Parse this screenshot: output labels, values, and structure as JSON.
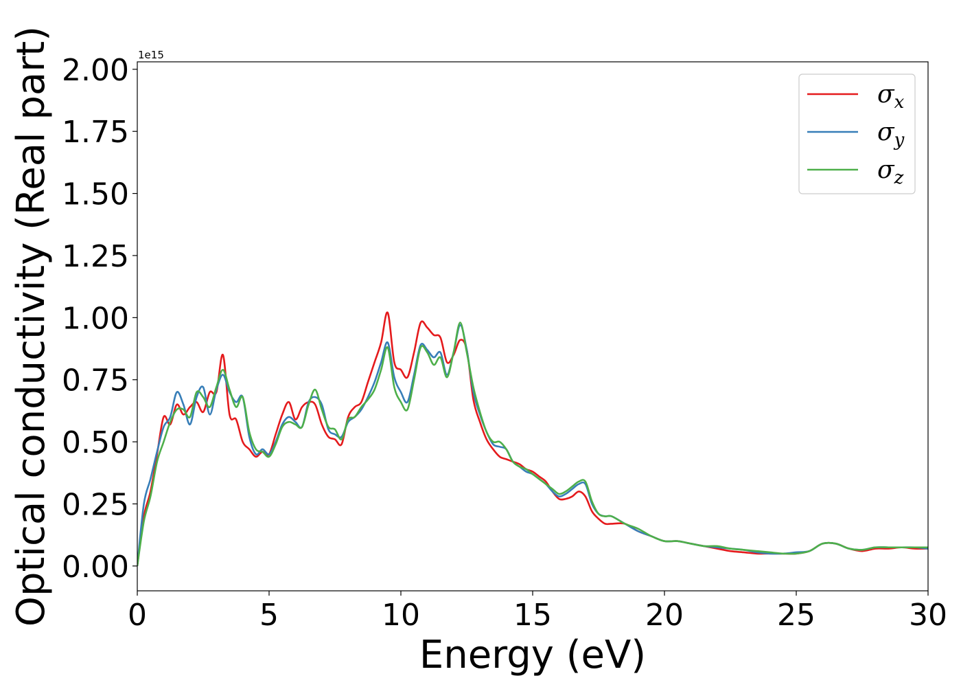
{
  "chart_data": {
    "type": "line",
    "xlabel": "Energy (eV)",
    "ylabel": "Optical conductivity (Real part)",
    "y_offset_label": "1e15",
    "xlim": [
      0,
      30
    ],
    "ylim": [
      -0.1,
      2.03
    ],
    "x_ticks": [
      0,
      5,
      10,
      15,
      20,
      25,
      30
    ],
    "y_ticks": [
      0.0,
      0.25,
      0.5,
      0.75,
      1.0,
      1.25,
      1.5,
      1.75,
      2.0
    ],
    "x_tick_labels": [
      "0",
      "5",
      "10",
      "15",
      "20",
      "25",
      "30"
    ],
    "y_tick_labels": [
      "0.00",
      "0.25",
      "0.50",
      "0.75",
      "1.00",
      "1.25",
      "1.50",
      "1.75",
      "2.00"
    ],
    "grid": false,
    "legend_position": "top-right",
    "x": [
      0,
      0.25,
      0.5,
      0.75,
      1.0,
      1.25,
      1.5,
      1.75,
      2.0,
      2.25,
      2.5,
      2.75,
      3.0,
      3.25,
      3.5,
      3.75,
      4.0,
      4.25,
      4.5,
      4.75,
      5.0,
      5.25,
      5.5,
      5.75,
      6.0,
      6.25,
      6.5,
      6.75,
      7.0,
      7.25,
      7.5,
      7.75,
      8.0,
      8.25,
      8.5,
      8.75,
      9.0,
      9.25,
      9.5,
      9.75,
      10.0,
      10.25,
      10.5,
      10.75,
      11.0,
      11.25,
      11.5,
      11.75,
      12.0,
      12.25,
      12.5,
      12.75,
      13.0,
      13.25,
      13.5,
      13.75,
      14.0,
      14.25,
      14.5,
      14.75,
      15.0,
      15.25,
      15.5,
      15.75,
      16.0,
      16.25,
      16.5,
      16.75,
      17.0,
      17.25,
      17.5,
      17.75,
      18.0,
      18.5,
      19.0,
      19.5,
      20.0,
      20.5,
      21.0,
      21.5,
      22.0,
      22.5,
      23.0,
      23.5,
      24.0,
      24.5,
      25.0,
      25.5,
      26.0,
      26.5,
      27.0,
      27.5,
      28.0,
      28.5,
      29.0,
      29.5,
      30.0
    ],
    "series": [
      {
        "name": "σ",
        "subscript": "x",
        "color": "#e41a1c",
        "values": [
          0.0,
          0.2,
          0.3,
          0.45,
          0.6,
          0.57,
          0.65,
          0.61,
          0.64,
          0.66,
          0.62,
          0.7,
          0.7,
          0.85,
          0.61,
          0.59,
          0.5,
          0.47,
          0.44,
          0.46,
          0.45,
          0.53,
          0.61,
          0.66,
          0.59,
          0.64,
          0.66,
          0.65,
          0.57,
          0.52,
          0.51,
          0.49,
          0.6,
          0.64,
          0.66,
          0.74,
          0.82,
          0.9,
          1.02,
          0.82,
          0.79,
          0.76,
          0.86,
          0.98,
          0.96,
          0.93,
          0.92,
          0.82,
          0.85,
          0.91,
          0.87,
          0.67,
          0.58,
          0.51,
          0.47,
          0.44,
          0.43,
          0.42,
          0.41,
          0.39,
          0.38,
          0.36,
          0.34,
          0.3,
          0.27,
          0.27,
          0.28,
          0.3,
          0.28,
          0.22,
          0.19,
          0.17,
          0.17,
          0.17,
          0.14,
          0.12,
          0.1,
          0.1,
          0.09,
          0.08,
          0.07,
          0.06,
          0.055,
          0.05,
          0.05,
          0.05,
          0.05,
          0.06,
          0.09,
          0.09,
          0.07,
          0.06,
          0.07,
          0.07,
          0.075,
          0.07,
          0.07
        ]
      },
      {
        "name": "σ",
        "subscript": "y",
        "color": "#377eb8",
        "values": [
          0.0,
          0.25,
          0.35,
          0.46,
          0.56,
          0.6,
          0.7,
          0.65,
          0.57,
          0.68,
          0.72,
          0.61,
          0.71,
          0.77,
          0.7,
          0.66,
          0.68,
          0.52,
          0.45,
          0.47,
          0.45,
          0.5,
          0.57,
          0.6,
          0.58,
          0.56,
          0.66,
          0.68,
          0.65,
          0.55,
          0.53,
          0.52,
          0.58,
          0.6,
          0.63,
          0.68,
          0.74,
          0.82,
          0.9,
          0.76,
          0.7,
          0.66,
          0.77,
          0.89,
          0.87,
          0.84,
          0.86,
          0.77,
          0.86,
          0.97,
          0.87,
          0.7,
          0.61,
          0.54,
          0.49,
          0.48,
          0.47,
          0.42,
          0.4,
          0.38,
          0.37,
          0.35,
          0.33,
          0.3,
          0.28,
          0.29,
          0.31,
          0.33,
          0.33,
          0.25,
          0.21,
          0.2,
          0.2,
          0.17,
          0.14,
          0.12,
          0.1,
          0.1,
          0.09,
          0.08,
          0.075,
          0.07,
          0.065,
          0.055,
          0.05,
          0.05,
          0.055,
          0.06,
          0.09,
          0.09,
          0.07,
          0.065,
          0.075,
          0.075,
          0.075,
          0.075,
          0.07
        ]
      },
      {
        "name": "σ",
        "subscript": "z",
        "color": "#4daf4a",
        "values": [
          0.0,
          0.18,
          0.28,
          0.42,
          0.5,
          0.58,
          0.63,
          0.63,
          0.6,
          0.7,
          0.68,
          0.64,
          0.72,
          0.79,
          0.71,
          0.64,
          0.68,
          0.54,
          0.47,
          0.46,
          0.44,
          0.49,
          0.56,
          0.58,
          0.57,
          0.56,
          0.65,
          0.71,
          0.63,
          0.56,
          0.55,
          0.51,
          0.59,
          0.6,
          0.64,
          0.67,
          0.71,
          0.79,
          0.88,
          0.72,
          0.66,
          0.63,
          0.75,
          0.88,
          0.86,
          0.81,
          0.84,
          0.76,
          0.86,
          0.98,
          0.86,
          0.72,
          0.62,
          0.54,
          0.5,
          0.5,
          0.47,
          0.42,
          0.4,
          0.39,
          0.37,
          0.35,
          0.33,
          0.31,
          0.29,
          0.3,
          0.32,
          0.34,
          0.34,
          0.26,
          0.21,
          0.2,
          0.2,
          0.17,
          0.15,
          0.12,
          0.1,
          0.1,
          0.09,
          0.08,
          0.08,
          0.07,
          0.065,
          0.06,
          0.055,
          0.05,
          0.05,
          0.06,
          0.09,
          0.09,
          0.07,
          0.065,
          0.075,
          0.075,
          0.075,
          0.075,
          0.075
        ]
      }
    ]
  }
}
